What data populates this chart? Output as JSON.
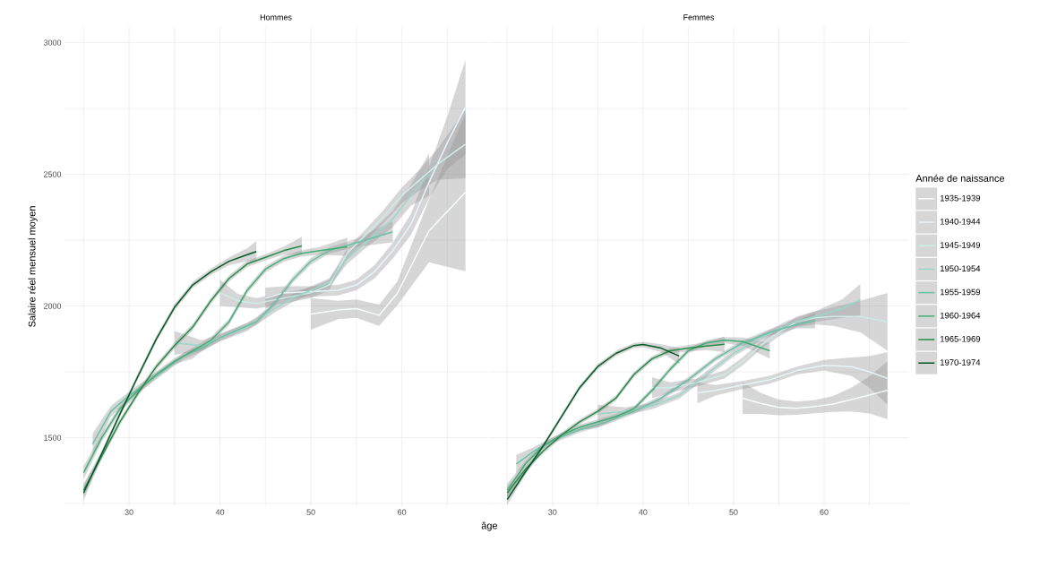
{
  "chart_data": [
    {
      "type": "line",
      "title": "Hommes",
      "xlabel": "âge",
      "ylabel": "Salaire réel mensuel moyen",
      "grid": true,
      "xlim": [
        22.9,
        69.4
      ],
      "ylim": [
        1240,
        3060
      ],
      "xticks": [
        {
          "value": 25,
          "label": null
        },
        30,
        {
          "value": 35,
          "label": null
        },
        40,
        {
          "value": 45,
          "label": null
        },
        50,
        {
          "value": 55,
          "label": null
        },
        60,
        {
          "value": 65,
          "label": null
        }
      ],
      "yticks": [
        {
          "value": 1250,
          "label": null
        },
        1500,
        {
          "value": 1750,
          "label": null
        },
        2000,
        {
          "value": 2250,
          "label": null
        },
        2500,
        {
          "value": 2750,
          "label": null
        },
        3000
      ],
      "series": [
        {
          "color": "#f7fcfd",
          "x": [
            50,
            53,
            55,
            57.5,
            59.5,
            63,
            67
          ],
          "values": [
            1970,
            1985,
            1990,
            1965,
            2048,
            2286,
            2432
          ],
          "lower": [
            1910,
            1950,
            1955,
            1925,
            2003,
            2166,
            2132
          ],
          "upper": [
            2030,
            2020,
            2025,
            2005,
            2093,
            2406,
            2732
          ]
        },
        {
          "color": "#e5f5f9",
          "x": [
            45,
            47,
            50,
            53,
            55,
            57,
            59,
            61,
            63,
            65,
            67
          ],
          "values": [
            2030,
            2050,
            2055,
            2060,
            2080,
            2130,
            2210,
            2310,
            2470,
            2620,
            2755
          ],
          "lower": [
            1990,
            2025,
            2035,
            2040,
            2060,
            2105,
            2180,
            2270,
            2410,
            2520,
            2575
          ],
          "upper": [
            2070,
            2075,
            2075,
            2080,
            2100,
            2155,
            2240,
            2350,
            2530,
            2720,
            2935
          ]
        },
        {
          "color": "#ccece6",
          "x": [
            40,
            42,
            44,
            47,
            50,
            52,
            54,
            56,
            58,
            60,
            62,
            64,
            67
          ],
          "values": [
            2050,
            2020,
            2010,
            2030,
            2050,
            2080,
            2200,
            2270,
            2340,
            2420,
            2480,
            2540,
            2615
          ],
          "lower": [
            2000,
            1995,
            1990,
            2010,
            2030,
            2060,
            2180,
            2250,
            2315,
            2390,
            2440,
            2480,
            2485
          ],
          "upper": [
            2100,
            2045,
            2030,
            2050,
            2070,
            2100,
            2220,
            2290,
            2365,
            2450,
            2520,
            2600,
            2745
          ]
        },
        {
          "color": "#99d8c9",
          "x": [
            35,
            38,
            40,
            43,
            46,
            48,
            50,
            52,
            54,
            56,
            59,
            61,
            63
          ],
          "values": [
            1860,
            1850,
            1880,
            1920,
            1990,
            2030,
            2060,
            2090,
            2180,
            2240,
            2330,
            2420,
            2500
          ],
          "lower": [
            1815,
            1830,
            1865,
            1905,
            1975,
            2015,
            2045,
            2075,
            2160,
            2220,
            2300,
            2380,
            2420
          ],
          "upper": [
            1905,
            1870,
            1895,
            1935,
            2005,
            2045,
            2075,
            2105,
            2200,
            2260,
            2360,
            2460,
            2580
          ]
        },
        {
          "color": "#66c2a4",
          "x": [
            26,
            28,
            30,
            32,
            34,
            36,
            38,
            40,
            42,
            44,
            46,
            48,
            50,
            52,
            55,
            59
          ],
          "values": [
            1476,
            1600,
            1660,
            1710,
            1760,
            1810,
            1840,
            1880,
            1910,
            1940,
            2010,
            2100,
            2170,
            2210,
            2240,
            2282
          ],
          "lower": [
            1436,
            1580,
            1645,
            1695,
            1748,
            1798,
            1828,
            1868,
            1898,
            1928,
            1998,
            2088,
            2158,
            2198,
            2225,
            2242
          ],
          "upper": [
            1516,
            1620,
            1675,
            1725,
            1772,
            1822,
            1852,
            1892,
            1922,
            1952,
            2022,
            2112,
            2182,
            2222,
            2255,
            2322
          ]
        },
        {
          "color": "#41ae76",
          "x": [
            25,
            27,
            29,
            31,
            33,
            35,
            37,
            39,
            41,
            43,
            45,
            47,
            49,
            51,
            54
          ],
          "values": [
            1367,
            1500,
            1610,
            1680,
            1740,
            1790,
            1830,
            1870,
            1940,
            2060,
            2140,
            2180,
            2200,
            2210,
            2225
          ],
          "lower": [
            1342,
            1485,
            1598,
            1668,
            1728,
            1778,
            1800,
            1858,
            1928,
            2048,
            2128,
            2168,
            2188,
            2195,
            2190
          ],
          "upper": [
            1392,
            1515,
            1622,
            1692,
            1752,
            1802,
            1842,
            1882,
            1952,
            2072,
            2152,
            2192,
            2212,
            2225,
            2260
          ]
        },
        {
          "color": "#238b45",
          "x": [
            25,
            27,
            29,
            31,
            33,
            35,
            37,
            39,
            41,
            43,
            45,
            47,
            49
          ],
          "values": [
            1300,
            1430,
            1560,
            1670,
            1770,
            1850,
            1920,
            2020,
            2105,
            2160,
            2185,
            2210,
            2228
          ],
          "lower": [
            1275,
            1418,
            1548,
            1658,
            1758,
            1838,
            1908,
            2008,
            2093,
            2148,
            2173,
            2195,
            2193
          ],
          "upper": [
            1325,
            1442,
            1572,
            1682,
            1782,
            1862,
            1932,
            2032,
            2117,
            2172,
            2197,
            2225,
            2263
          ]
        },
        {
          "color": "#005824",
          "x": [
            25,
            27,
            29,
            31,
            33,
            35,
            37,
            39,
            41,
            43,
            44
          ],
          "values": [
            1290,
            1440,
            1590,
            1735,
            1875,
            1995,
            2080,
            2130,
            2170,
            2195,
            2207
          ],
          "lower": [
            1260,
            1428,
            1578,
            1723,
            1863,
            1983,
            2068,
            2118,
            2155,
            2170,
            2167
          ],
          "upper": [
            1320,
            1452,
            1602,
            1747,
            1887,
            2007,
            2092,
            2142,
            2185,
            2220,
            2247
          ]
        }
      ]
    },
    {
      "type": "line",
      "title": "Femmes",
      "grid": true,
      "legend": "right",
      "legend_title": "Année de naissance",
      "tick_labels": "x",
      "xlim": [
        22.9,
        69.4
      ],
      "ylim": [
        1240,
        3060
      ],
      "xticks": [
        {
          "value": 25,
          "label": null
        },
        30,
        {
          "value": 35,
          "label": null
        },
        40,
        {
          "value": 45,
          "label": null
        },
        50,
        {
          "value": 55,
          "label": null
        },
        60,
        {
          "value": 65,
          "label": null
        }
      ],
      "yticks": [
        {
          "value": 1250,
          "label": null
        },
        1500,
        {
          "value": 1750,
          "label": null
        },
        2000,
        {
          "value": 2250,
          "label": null
        },
        2500,
        {
          "value": 2750,
          "label": null
        },
        3000
      ],
      "series": [
        {
          "name": "1935-1939",
          "color": "#f7fcfd",
          "x": [
            51,
            53,
            55,
            57,
            59,
            61,
            63,
            65,
            67
          ],
          "values": [
            1650,
            1630,
            1615,
            1612,
            1618,
            1628,
            1645,
            1662,
            1680
          ],
          "lower": [
            1590,
            1590,
            1585,
            1587,
            1593,
            1598,
            1600,
            1592,
            1570
          ],
          "upper": [
            1710,
            1670,
            1645,
            1637,
            1643,
            1658,
            1690,
            1732,
            1790
          ]
        },
        {
          "name": "1940-1944",
          "color": "#e5f5f9",
          "x": [
            46,
            48,
            51,
            54,
            57,
            60,
            63,
            65,
            67
          ],
          "values": [
            1670,
            1680,
            1700,
            1720,
            1755,
            1775,
            1770,
            1750,
            1725
          ],
          "lower": [
            1630,
            1660,
            1685,
            1705,
            1740,
            1755,
            1735,
            1690,
            1625
          ],
          "upper": [
            1710,
            1700,
            1715,
            1735,
            1770,
            1795,
            1805,
            1810,
            1825
          ]
        },
        {
          "name": "1945-1949",
          "color": "#ccece6",
          "x": [
            41,
            43,
            46,
            49,
            51,
            53,
            55,
            57,
            59,
            61,
            64,
            67
          ],
          "values": [
            1690,
            1690,
            1710,
            1740,
            1790,
            1850,
            1900,
            1940,
            1955,
            1960,
            1960,
            1940
          ],
          "lower": [
            1650,
            1670,
            1695,
            1725,
            1775,
            1835,
            1885,
            1920,
            1930,
            1925,
            1900,
            1830
          ],
          "upper": [
            1730,
            1710,
            1725,
            1755,
            1805,
            1865,
            1915,
            1960,
            1980,
            1995,
            2020,
            2050
          ]
        },
        {
          "name": "1950-1954",
          "color": "#99d8c9",
          "x": [
            35,
            38,
            41,
            44,
            47,
            50,
            53,
            56,
            59,
            62,
            64
          ],
          "values": [
            1590,
            1600,
            1620,
            1660,
            1740,
            1820,
            1880,
            1930,
            1960,
            1990,
            2024
          ],
          "lower": [
            1555,
            1585,
            1608,
            1648,
            1728,
            1808,
            1868,
            1915,
            1940,
            1955,
            1964
          ],
          "upper": [
            1625,
            1615,
            1632,
            1672,
            1752,
            1832,
            1892,
            1945,
            1980,
            2025,
            2084
          ]
        },
        {
          "name": "1955-1959",
          "color": "#66c2a4",
          "x": [
            26,
            28,
            30,
            33,
            36,
            39,
            42,
            45,
            48,
            51,
            54,
            57,
            59
          ],
          "values": [
            1400,
            1450,
            1490,
            1530,
            1560,
            1600,
            1650,
            1720,
            1800,
            1860,
            1900,
            1930,
            1945
          ],
          "lower": [
            1365,
            1435,
            1478,
            1520,
            1550,
            1590,
            1640,
            1710,
            1790,
            1850,
            1888,
            1915,
            1915
          ],
          "upper": [
            1435,
            1465,
            1502,
            1540,
            1570,
            1610,
            1660,
            1730,
            1810,
            1870,
            1912,
            1945,
            1975
          ]
        },
        {
          "name": "1960-1964",
          "color": "#41ae76",
          "x": [
            25,
            27,
            29,
            31,
            33,
            35,
            37,
            39,
            41,
            43,
            45,
            47,
            49,
            51,
            54
          ],
          "values": [
            1300,
            1400,
            1470,
            1510,
            1540,
            1560,
            1580,
            1610,
            1680,
            1760,
            1830,
            1860,
            1870,
            1865,
            1830
          ],
          "lower": [
            1275,
            1388,
            1460,
            1500,
            1530,
            1538,
            1570,
            1600,
            1670,
            1750,
            1820,
            1850,
            1858,
            1850,
            1800
          ],
          "upper": [
            1325,
            1412,
            1480,
            1520,
            1550,
            1570,
            1590,
            1620,
            1690,
            1770,
            1840,
            1870,
            1882,
            1880,
            1860
          ]
        },
        {
          "name": "1965-1969",
          "color": "#238b45",
          "x": [
            25,
            27,
            29,
            31,
            33,
            35,
            37,
            39,
            41,
            43,
            45,
            47,
            49
          ],
          "values": [
            1290,
            1380,
            1450,
            1510,
            1560,
            1600,
            1650,
            1740,
            1800,
            1830,
            1840,
            1848,
            1855
          ],
          "lower": [
            1265,
            1368,
            1440,
            1500,
            1550,
            1590,
            1640,
            1730,
            1790,
            1820,
            1828,
            1833,
            1825
          ],
          "upper": [
            1315,
            1392,
            1460,
            1520,
            1570,
            1610,
            1660,
            1750,
            1810,
            1840,
            1852,
            1863,
            1885
          ]
        },
        {
          "name": "1970-1974",
          "color": "#005824",
          "x": [
            25,
            27,
            29,
            31,
            33,
            35,
            37,
            39,
            40,
            42,
            44
          ],
          "values": [
            1265,
            1370,
            1470,
            1580,
            1690,
            1770,
            1820,
            1850,
            1854,
            1840,
            1810
          ],
          "lower": [
            1245,
            1358,
            1460,
            1570,
            1680,
            1760,
            1810,
            1840,
            1844,
            1825,
            1780
          ],
          "upper": [
            1285,
            1382,
            1480,
            1590,
            1700,
            1780,
            1830,
            1860,
            1864,
            1855,
            1840
          ]
        }
      ]
    }
  ]
}
